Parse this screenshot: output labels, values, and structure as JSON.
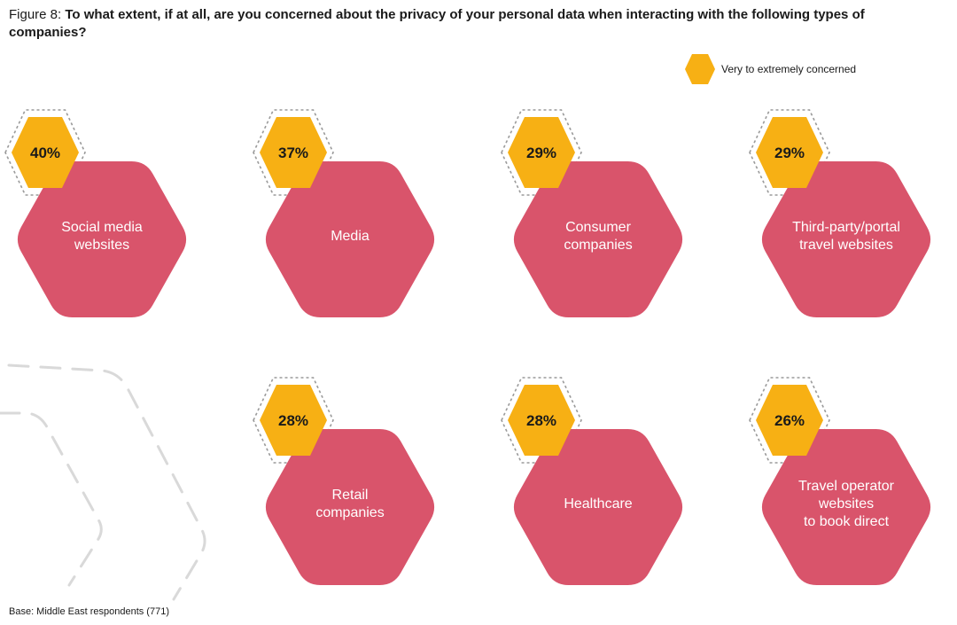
{
  "title": {
    "prefix": "Figure 8:",
    "question": "To what extent, if at all, are you concerned about the privacy of your personal data when interacting with the following types of companies?"
  },
  "legend": {
    "label": "Very to extremely concerned"
  },
  "footer": {
    "base": "Base: Middle East respondents (771)"
  },
  "colors": {
    "concern_badge": "#f7b014",
    "category_hex": "#d9546b",
    "dashed_outline": "#9a9a9a",
    "decor_dashes": "#d9d9d9"
  },
  "chart_data": {
    "type": "other",
    "unit": "%",
    "series": [
      {
        "name": "Very to extremely concerned"
      }
    ],
    "items": [
      {
        "category_lines": [
          "Social media",
          "websites"
        ],
        "value": 40,
        "label": "40%"
      },
      {
        "category_lines": [
          "Media"
        ],
        "value": 37,
        "label": "37%"
      },
      {
        "category_lines": [
          "Consumer",
          "companies"
        ],
        "value": 29,
        "label": "29%"
      },
      {
        "category_lines": [
          "Third-party/portal",
          "travel websites"
        ],
        "value": 29,
        "label": "29%"
      },
      {
        "category_lines": [
          "Retail",
          "companies"
        ],
        "value": 28,
        "label": "28%"
      },
      {
        "category_lines": [
          "Healthcare"
        ],
        "value": 28,
        "label": "28%"
      },
      {
        "category_lines": [
          "Travel operator",
          "websites",
          "to book direct"
        ],
        "value": 26,
        "label": "26%"
      }
    ]
  }
}
